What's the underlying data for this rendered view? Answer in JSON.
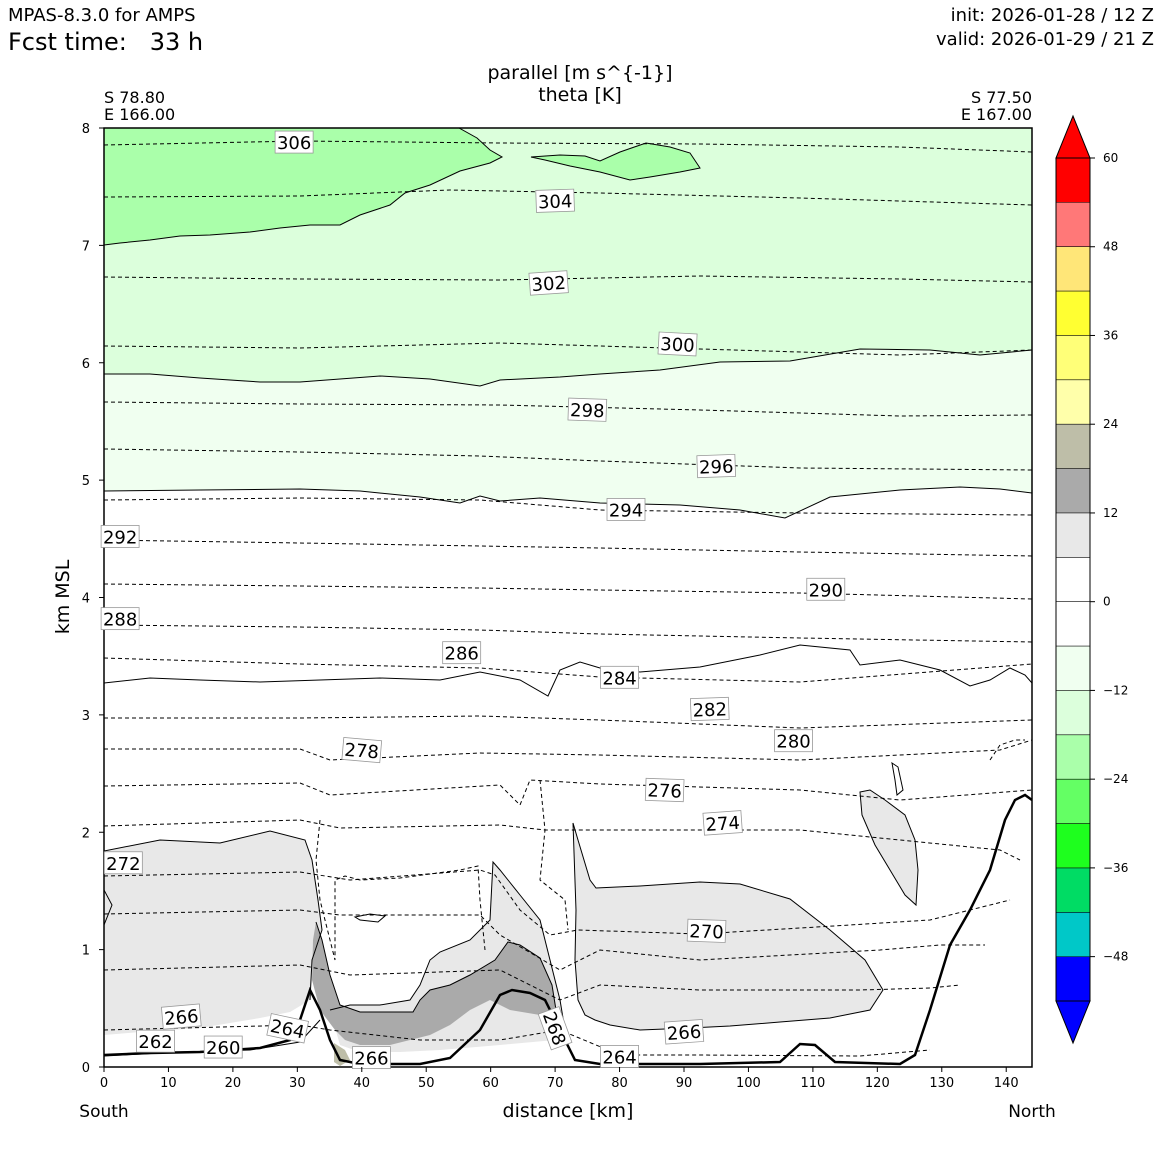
{
  "header": {
    "model": "MPAS-8.3.0 for AMPS",
    "fcst_label": "Fcst time:",
    "fcst_value": "33 h",
    "init": "init: 2026-01-28 / 12 Z",
    "valid": "valid: 2026-01-29 / 21 Z"
  },
  "chart_data": {
    "type": "contour",
    "title_line1": "parallel [m s^{-1}]",
    "title_line2": "theta [K]",
    "xlabel": "distance [km]",
    "ylabel": "km MSL",
    "xlim": [
      0,
      144
    ],
    "ylim": [
      0,
      8
    ],
    "xticks": [
      0,
      10,
      20,
      30,
      40,
      50,
      60,
      70,
      80,
      90,
      100,
      110,
      120,
      130,
      140
    ],
    "yticks": [
      0,
      1,
      2,
      3,
      4,
      5,
      6,
      7,
      8
    ],
    "left_end": {
      "lat": "S 78.80",
      "lon": "E 166.00",
      "direction": "South"
    },
    "right_end": {
      "lat": "S 77.50",
      "lon": "E 167.00",
      "direction": "North"
    },
    "colorbar": {
      "levels": [
        -54,
        -48,
        -42,
        -36,
        -30,
        -24,
        -18,
        -12,
        -6,
        0,
        6,
        12,
        18,
        24,
        30,
        36,
        42,
        48,
        54,
        60
      ],
      "tick_labels": [
        "−48",
        "−36",
        "−24",
        "−12",
        "0",
        "12",
        "24",
        "36",
        "48",
        "60"
      ],
      "tick_values": [
        -48,
        -36,
        -24,
        -12,
        0,
        12,
        24,
        36,
        48,
        60
      ],
      "colors": [
        "#0000ff",
        "#00c8c8",
        "#00dc64",
        "#1eff1e",
        "#64ff64",
        "#aaffaa",
        "#dcffdc",
        "#f0fff0",
        "#ffffff",
        "#ffffff",
        "#e8e8e8",
        "#aaaaaa",
        "#bebea8",
        "#ffffaa",
        "#ffff78",
        "#ffff32",
        "#ffe678",
        "#ff7878",
        "#ff0000"
      ],
      "extend": "both"
    },
    "theta_labels": [
      {
        "text": "306",
        "x": 29.5,
        "y": 7.88,
        "rot": 0
      },
      {
        "text": "304",
        "x": 70,
        "y": 7.38,
        "rot": -2
      },
      {
        "text": "302",
        "x": 69,
        "y": 6.68,
        "rot": -4
      },
      {
        "text": "300",
        "x": 89,
        "y": 6.16,
        "rot": 3
      },
      {
        "text": "298",
        "x": 75,
        "y": 5.6,
        "rot": 2
      },
      {
        "text": "296",
        "x": 95,
        "y": 5.12,
        "rot": -2
      },
      {
        "text": "294",
        "x": 81,
        "y": 4.75,
        "rot": 0
      },
      {
        "text": "292",
        "x": 2.5,
        "y": 4.52,
        "rot": 0
      },
      {
        "text": "290",
        "x": 112,
        "y": 4.07,
        "rot": 0
      },
      {
        "text": "288",
        "x": 2.5,
        "y": 3.82,
        "rot": 0
      },
      {
        "text": "286",
        "x": 55.5,
        "y": 3.53,
        "rot": 0
      },
      {
        "text": "284",
        "x": 80,
        "y": 3.32,
        "rot": 0
      },
      {
        "text": "282",
        "x": 94,
        "y": 3.05,
        "rot": -2
      },
      {
        "text": "280",
        "x": 107,
        "y": 2.78,
        "rot": 0
      },
      {
        "text": "278",
        "x": 40,
        "y": 2.7,
        "rot": 5
      },
      {
        "text": "276",
        "x": 87,
        "y": 2.36,
        "rot": 2
      },
      {
        "text": "274",
        "x": 96,
        "y": 2.08,
        "rot": -4
      },
      {
        "text": "272",
        "x": 3,
        "y": 1.74,
        "rot": 0
      },
      {
        "text": "270",
        "x": 93.5,
        "y": 1.16,
        "rot": 2
      },
      {
        "text": "268",
        "x": 70,
        "y": 0.33,
        "rot": 70
      },
      {
        "text": "266",
        "x": 12,
        "y": 0.43,
        "rot": -5
      },
      {
        "text": "266",
        "x": 90,
        "y": 0.3,
        "rot": -4
      },
      {
        "text": "266",
        "x": 41.5,
        "y": 0.08,
        "rot": 0
      },
      {
        "text": "264",
        "x": 28.5,
        "y": 0.33,
        "rot": 12
      },
      {
        "text": "264",
        "x": 80,
        "y": 0.09,
        "rot": 0
      },
      {
        "text": "262",
        "x": 8,
        "y": 0.22,
        "rot": 0
      },
      {
        "text": "260",
        "x": 18.5,
        "y": 0.17,
        "rot": 0
      }
    ]
  }
}
